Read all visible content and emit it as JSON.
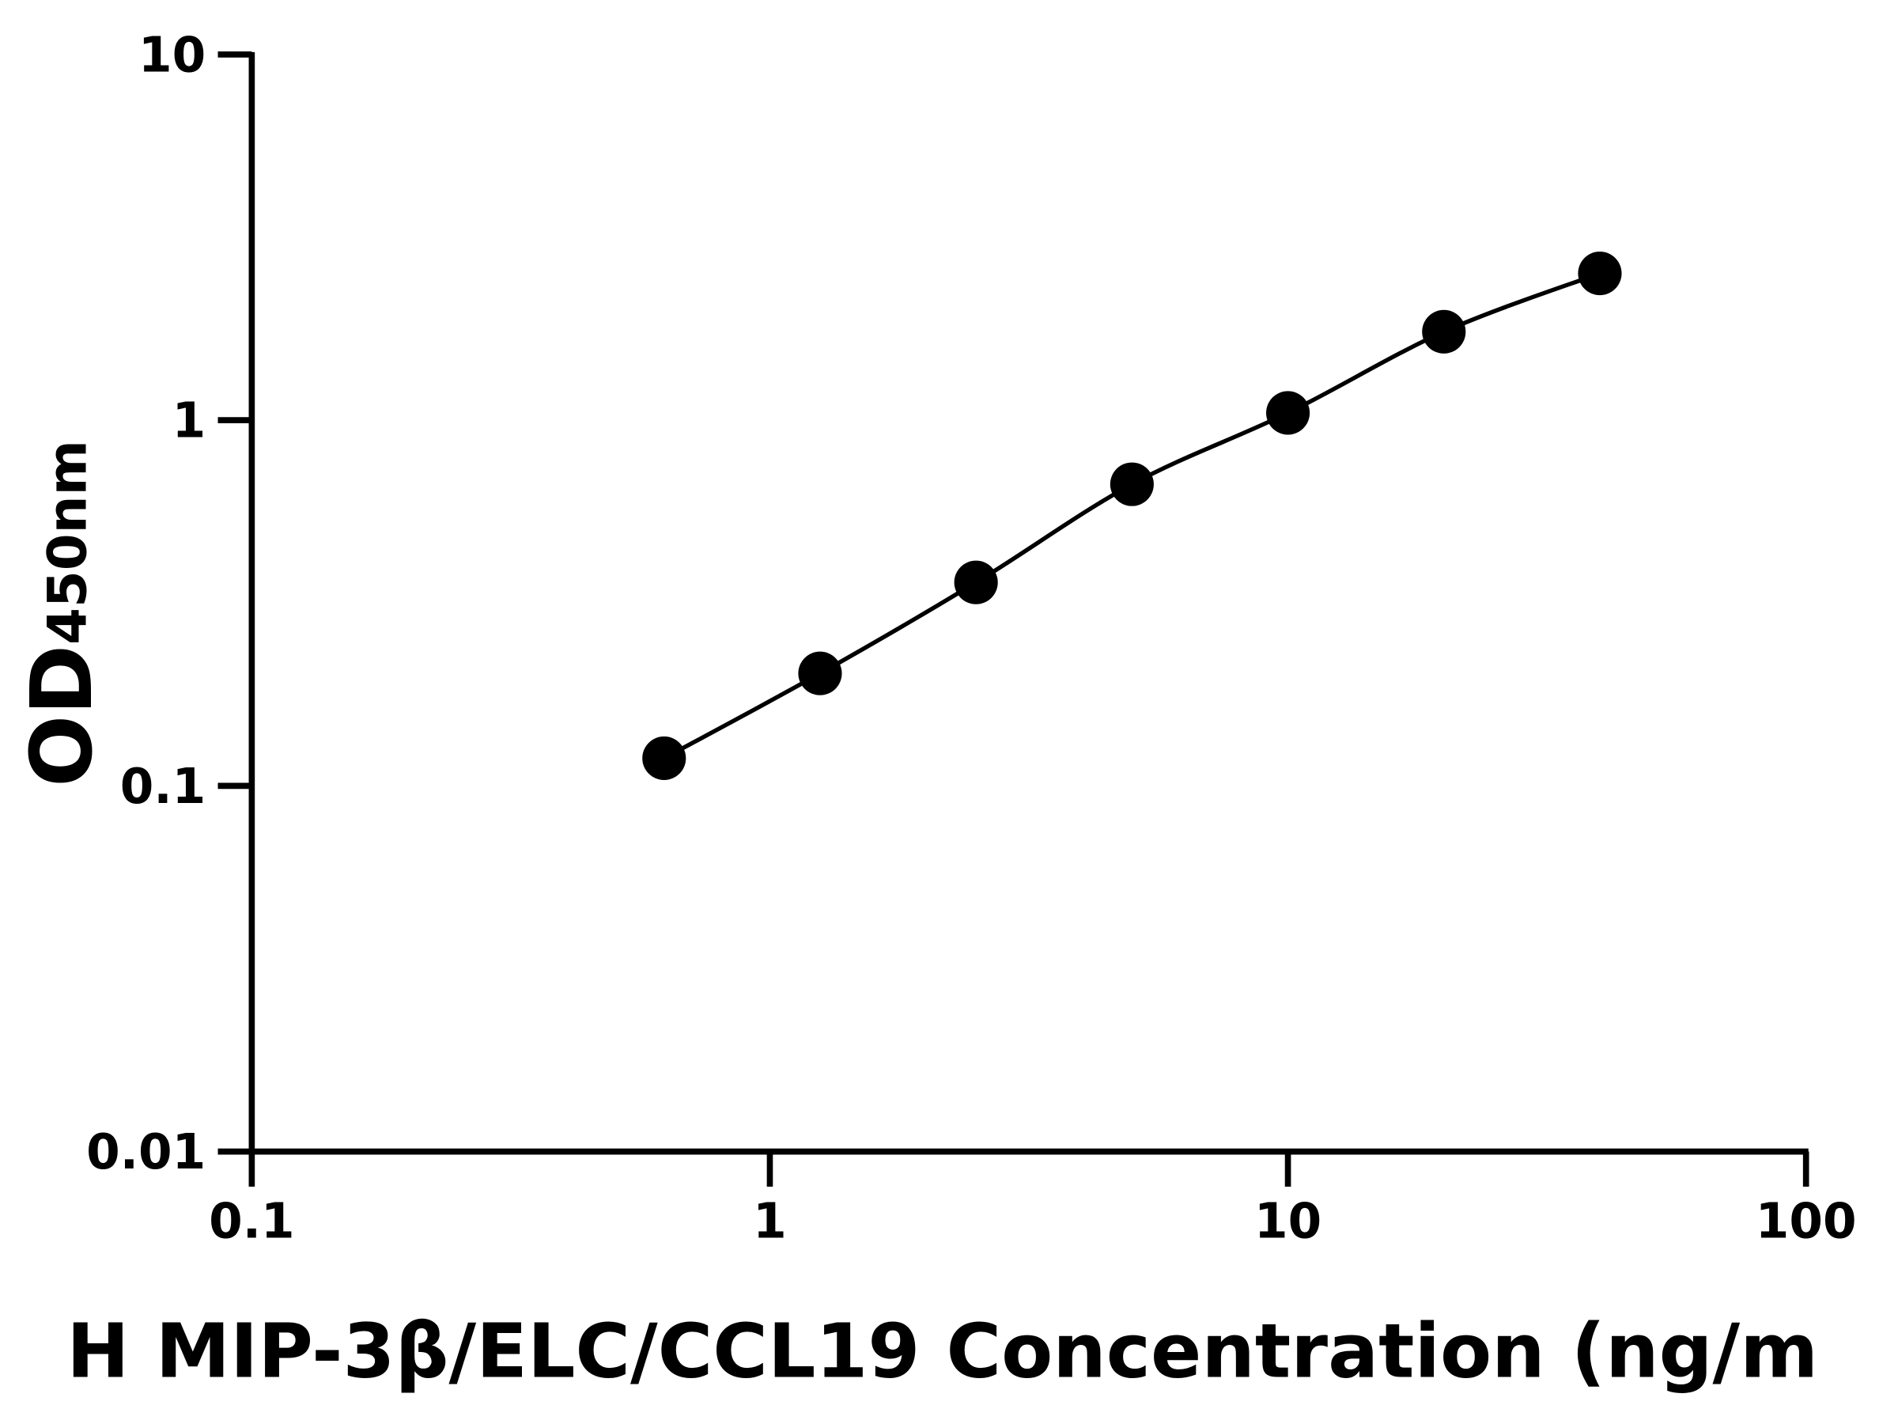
{
  "chart_data": {
    "type": "line",
    "title": "",
    "xlabel": "H MIP-3β/ELC/CCL19 Concentration (ng/m",
    "ylabel": "OD",
    "ylabel_subscript": "450nm",
    "x_scale": "log",
    "y_scale": "log",
    "xlim": [
      0.1,
      100
    ],
    "ylim": [
      0.01,
      10
    ],
    "x_ticks": [
      "0.1",
      "1",
      "10",
      "100"
    ],
    "y_ticks": [
      "0.01",
      "0.1",
      "1",
      "10"
    ],
    "grid": false,
    "legend": "none",
    "series": [
      {
        "x": [
          0.625,
          1.25,
          2.5,
          5,
          10,
          20,
          40
        ],
        "y": [
          0.119,
          0.203,
          0.36,
          0.668,
          1.047,
          1.745,
          2.52
        ],
        "marker": "circle",
        "line": "smooth",
        "color": "#000000"
      }
    ]
  }
}
